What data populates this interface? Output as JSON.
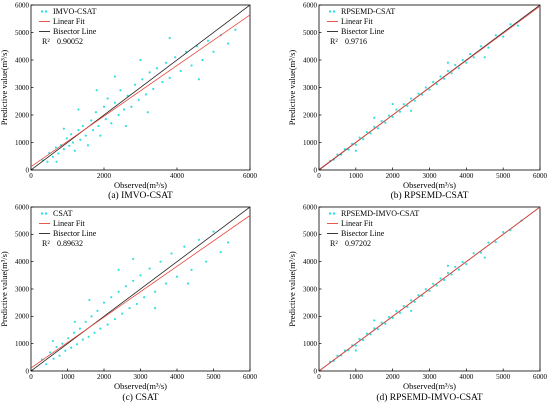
{
  "chart_data": [
    {
      "type": "scatter",
      "caption": "(a) IMVO-CSAT",
      "xlabel": "Observed(m³/s)",
      "ylabel": "Predictive value(m³/s)",
      "xlim": [
        0,
        6000
      ],
      "ylim": [
        0,
        6000
      ],
      "xticks": [
        "0",
        "2000",
        "4000",
        "6000"
      ],
      "yticks": [
        "0",
        "1000",
        "2000",
        "3000",
        "4000",
        "5000",
        "6000"
      ],
      "series_name": "IMVO-CSAT",
      "fit_label": "Linear Fit",
      "bisector_label": "Bisector Line",
      "r2_label": "R²",
      "r2_value": "0.90052",
      "fit": {
        "slope": 0.92,
        "intercept": 120
      },
      "points": [
        [
          320,
          350
        ],
        [
          450,
          300
        ],
        [
          500,
          620
        ],
        [
          600,
          480
        ],
        [
          680,
          820
        ],
        [
          750,
          600
        ],
        [
          820,
          900
        ],
        [
          900,
          760
        ],
        [
          980,
          1150
        ],
        [
          1050,
          880
        ],
        [
          1100,
          1300
        ],
        [
          1150,
          1000
        ],
        [
          1200,
          700
        ],
        [
          1300,
          1450
        ],
        [
          1350,
          1100
        ],
        [
          1420,
          1600
        ],
        [
          1500,
          1250
        ],
        [
          1560,
          900
        ],
        [
          1650,
          1800
        ],
        [
          1700,
          1450
        ],
        [
          1780,
          2100
        ],
        [
          1850,
          1600
        ],
        [
          1900,
          1250
        ],
        [
          2000,
          2300
        ],
        [
          2050,
          1850
        ],
        [
          2100,
          2600
        ],
        [
          2200,
          1700
        ],
        [
          2300,
          2450
        ],
        [
          2400,
          2000
        ],
        [
          2450,
          2900
        ],
        [
          2550,
          2200
        ],
        [
          2650,
          2700
        ],
        [
          2750,
          2300
        ],
        [
          2850,
          3100
        ],
        [
          2950,
          2550
        ],
        [
          3050,
          3300
        ],
        [
          3150,
          2750
        ],
        [
          3250,
          3550
        ],
        [
          3350,
          2950
        ],
        [
          3450,
          3700
        ],
        [
          3600,
          3200
        ],
        [
          3700,
          3900
        ],
        [
          3800,
          3350
        ],
        [
          3950,
          4100
        ],
        [
          4100,
          3600
        ],
        [
          4250,
          4300
        ],
        [
          4400,
          3800
        ],
        [
          4550,
          4500
        ],
        [
          4700,
          4000
        ],
        [
          4850,
          4700
        ],
        [
          5000,
          4300
        ],
        [
          5200,
          4900
        ],
        [
          5400,
          4600
        ],
        [
          5600,
          5100
        ],
        [
          2300,
          3400
        ],
        [
          1300,
          2200
        ],
        [
          3200,
          2100
        ],
        [
          3800,
          4800
        ],
        [
          2600,
          1600
        ],
        [
          1800,
          2900
        ],
        [
          4600,
          3300
        ],
        [
          900,
          1500
        ],
        [
          700,
          300
        ],
        [
          3000,
          4000
        ]
      ]
    },
    {
      "type": "scatter",
      "caption": "(b) RPSEMD-CSAT",
      "xlabel": "Observed(m³/s)",
      "ylabel": "Predictive value(m³/s)",
      "xlim": [
        0,
        6000
      ],
      "ylim": [
        0,
        6000
      ],
      "xticks": [
        "0",
        "1000",
        "2000",
        "3000",
        "4000",
        "5000",
        "6000"
      ],
      "yticks": [
        "0",
        "1000",
        "2000",
        "3000",
        "4000",
        "5000",
        "6000"
      ],
      "series_name": "RPSEMD-CSAT",
      "fit_label": "Linear Fit",
      "bisector_label": "Bisector Line",
      "r2_label": "R²",
      "r2_value": "0.9716",
      "fit": {
        "slope": 0.99,
        "intercept": 20
      },
      "points": [
        [
          300,
          330
        ],
        [
          400,
          380
        ],
        [
          500,
          560
        ],
        [
          600,
          560
        ],
        [
          700,
          760
        ],
        [
          800,
          740
        ],
        [
          900,
          950
        ],
        [
          1000,
          920
        ],
        [
          1100,
          1180
        ],
        [
          1200,
          1120
        ],
        [
          1300,
          1380
        ],
        [
          1400,
          1330
        ],
        [
          1500,
          1570
        ],
        [
          1600,
          1520
        ],
        [
          1700,
          1780
        ],
        [
          1800,
          1720
        ],
        [
          1900,
          1980
        ],
        [
          2000,
          1930
        ],
        [
          2100,
          2200
        ],
        [
          2200,
          2120
        ],
        [
          2300,
          2390
        ],
        [
          2400,
          2330
        ],
        [
          2500,
          2600
        ],
        [
          2600,
          2520
        ],
        [
          2700,
          2780
        ],
        [
          2800,
          2740
        ],
        [
          2900,
          3000
        ],
        [
          3000,
          2920
        ],
        [
          3100,
          3200
        ],
        [
          3200,
          3120
        ],
        [
          3300,
          3400
        ],
        [
          3400,
          3320
        ],
        [
          3500,
          3600
        ],
        [
          3600,
          3520
        ],
        [
          3700,
          3820
        ],
        [
          3800,
          3700
        ],
        [
          3900,
          4000
        ],
        [
          4000,
          3900
        ],
        [
          4100,
          4220
        ],
        [
          4200,
          4100
        ],
        [
          4400,
          4500
        ],
        [
          4600,
          4450
        ],
        [
          4800,
          4900
        ],
        [
          5000,
          4850
        ],
        [
          5200,
          5300
        ],
        [
          5400,
          5250
        ],
        [
          1500,
          1900
        ],
        [
          2500,
          2150
        ],
        [
          3500,
          3900
        ],
        [
          1000,
          700
        ],
        [
          4500,
          4100
        ],
        [
          2000,
          2400
        ]
      ]
    },
    {
      "type": "scatter",
      "caption": "(c) CSAT",
      "xlabel": "Observed(m³/s)",
      "ylabel": "Predictive value(m³/s)",
      "xlim": [
        0,
        6000
      ],
      "ylim": [
        0,
        6000
      ],
      "xticks": [
        "0",
        "1000",
        "2000",
        "3000",
        "4000",
        "5000",
        "6000"
      ],
      "yticks": [
        "0",
        "1000",
        "2000",
        "3000",
        "4000",
        "5000",
        "6000"
      ],
      "series_name": "CSAT",
      "fit_label": "Linear Fit",
      "bisector_label": "Bisector Line",
      "r2_label": "R²",
      "r2_value": "0.89632",
      "fit": {
        "slope": 0.93,
        "intercept": 110
      },
      "points": [
        [
          300,
          420
        ],
        [
          420,
          250
        ],
        [
          520,
          680
        ],
        [
          620,
          450
        ],
        [
          700,
          880
        ],
        [
          780,
          560
        ],
        [
          860,
          1000
        ],
        [
          940,
          740
        ],
        [
          1020,
          1200
        ],
        [
          1100,
          850
        ],
        [
          1180,
          1400
        ],
        [
          1260,
          980
        ],
        [
          1340,
          1550
        ],
        [
          1420,
          1150
        ],
        [
          1500,
          1800
        ],
        [
          1580,
          1250
        ],
        [
          1660,
          2000
        ],
        [
          1740,
          1400
        ],
        [
          1820,
          2200
        ],
        [
          1900,
          1550
        ],
        [
          2000,
          2500
        ],
        [
          2100,
          1700
        ],
        [
          2200,
          2700
        ],
        [
          2300,
          1900
        ],
        [
          2400,
          2900
        ],
        [
          2500,
          2100
        ],
        [
          2600,
          3100
        ],
        [
          2700,
          2300
        ],
        [
          2800,
          3300
        ],
        [
          2900,
          2450
        ],
        [
          3000,
          3500
        ],
        [
          3100,
          2700
        ],
        [
          3250,
          3750
        ],
        [
          3400,
          2900
        ],
        [
          3550,
          4000
        ],
        [
          3700,
          3200
        ],
        [
          3850,
          4300
        ],
        [
          4000,
          3450
        ],
        [
          4200,
          4550
        ],
        [
          4400,
          3700
        ],
        [
          4600,
          4800
        ],
        [
          4800,
          4000
        ],
        [
          5000,
          5100
        ],
        [
          5200,
          4350
        ],
        [
          5400,
          4700
        ],
        [
          2400,
          3700
        ],
        [
          1600,
          2600
        ],
        [
          3400,
          2300
        ],
        [
          4300,
          3200
        ],
        [
          1200,
          1800
        ],
        [
          2800,
          4100
        ],
        [
          600,
          1100
        ]
      ]
    },
    {
      "type": "scatter",
      "caption": "(d) RPSEMD-IMVO-CSAT",
      "xlabel": "Observed(m³/s)",
      "ylabel": "Predictive value(m³/s)",
      "xlim": [
        0,
        6000
      ],
      "ylim": [
        0,
        6000
      ],
      "xticks": [
        "0",
        "1000",
        "2000",
        "3000",
        "4000",
        "5000",
        "6000"
      ],
      "yticks": [
        "0",
        "1000",
        "2000",
        "3000",
        "4000",
        "5000",
        "6000"
      ],
      "series_name": "RPSEMD-IMVO-CSAT",
      "fit_label": "Linear Fit",
      "bisector_label": "Bisector Line",
      "r2_label": "R²",
      "r2_value": "0.97202",
      "fit": {
        "slope": 1.0,
        "intercept": 0
      },
      "points": [
        [
          300,
          340
        ],
        [
          400,
          370
        ],
        [
          500,
          560
        ],
        [
          600,
          570
        ],
        [
          700,
          750
        ],
        [
          800,
          760
        ],
        [
          900,
          940
        ],
        [
          1000,
          930
        ],
        [
          1100,
          1170
        ],
        [
          1200,
          1130
        ],
        [
          1300,
          1370
        ],
        [
          1400,
          1340
        ],
        [
          1500,
          1560
        ],
        [
          1600,
          1530
        ],
        [
          1700,
          1770
        ],
        [
          1800,
          1730
        ],
        [
          1900,
          1970
        ],
        [
          2000,
          1940
        ],
        [
          2100,
          2190
        ],
        [
          2200,
          2130
        ],
        [
          2300,
          2380
        ],
        [
          2400,
          2340
        ],
        [
          2500,
          2590
        ],
        [
          2600,
          2530
        ],
        [
          2700,
          2770
        ],
        [
          2800,
          2750
        ],
        [
          2900,
          2990
        ],
        [
          3000,
          2930
        ],
        [
          3100,
          3190
        ],
        [
          3200,
          3130
        ],
        [
          3300,
          3390
        ],
        [
          3400,
          3330
        ],
        [
          3500,
          3590
        ],
        [
          3600,
          3530
        ],
        [
          3700,
          3810
        ],
        [
          3800,
          3710
        ],
        [
          3900,
          3990
        ],
        [
          4000,
          3910
        ],
        [
          4200,
          4310
        ],
        [
          4400,
          4330
        ],
        [
          4600,
          4700
        ],
        [
          4800,
          4720
        ],
        [
          5000,
          5080
        ],
        [
          5200,
          5150
        ],
        [
          5500,
          5500
        ],
        [
          1500,
          1850
        ],
        [
          2500,
          2200
        ],
        [
          3500,
          3850
        ],
        [
          1000,
          750
        ],
        [
          4500,
          4150
        ]
      ]
    }
  ],
  "colors": {
    "points": "#33e0e0",
    "fit": "#e8463c",
    "bisector": "#222222",
    "axes": "#000000"
  }
}
